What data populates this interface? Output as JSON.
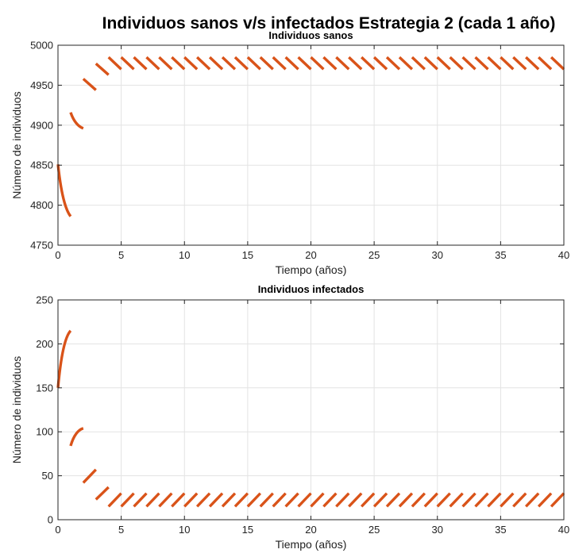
{
  "figure_title": "Individuos sanos v/s infectados Estrategia 2 (cada 1 año)",
  "colors": {
    "series": "#d95319",
    "grid": "#e3e3e3",
    "axis": "#262626"
  },
  "chart_data": [
    {
      "type": "line",
      "title": "Individuos sanos",
      "xlabel": "Tiempo (años)",
      "ylabel": "Número de individuos",
      "xlim": [
        0,
        40
      ],
      "ylim": [
        4750,
        5000
      ],
      "xticks": [
        0,
        5,
        10,
        15,
        20,
        25,
        30,
        35,
        40
      ],
      "yticks": [
        4750,
        4800,
        4850,
        4900,
        4950,
        5000
      ],
      "grid": true,
      "series": [
        {
          "segments": [
            {
              "x": [
                0,
                1
              ],
              "y": [
                4851,
                4786
              ],
              "curve": "convex"
            },
            {
              "x": [
                1,
                2
              ],
              "y": [
                4916,
                4896
              ],
              "curve": "convex"
            },
            {
              "x": [
                2,
                3
              ],
              "y": [
                4958,
                4944
              ],
              "curve": "linear"
            },
            {
              "x": [
                3,
                4
              ],
              "y": [
                4977,
                4963
              ],
              "curve": "linear"
            },
            {
              "x": [
                4,
                40
              ],
              "y": [
                4985,
                4970
              ],
              "periodic": true,
              "period": 1
            }
          ]
        }
      ]
    },
    {
      "type": "line",
      "title": "Individuos infectados",
      "xlabel": "Tiempo (años)",
      "ylabel": "Número de individuos",
      "xlim": [
        0,
        40
      ],
      "ylim": [
        0,
        250
      ],
      "xticks": [
        0,
        5,
        10,
        15,
        20,
        25,
        30,
        35,
        40
      ],
      "yticks": [
        0,
        50,
        100,
        150,
        200,
        250
      ],
      "grid": true,
      "series": [
        {
          "segments": [
            {
              "x": [
                0,
                1
              ],
              "y": [
                150,
                215
              ],
              "curve": "concave"
            },
            {
              "x": [
                1,
                2
              ],
              "y": [
                84,
                104
              ],
              "curve": "concave"
            },
            {
              "x": [
                2,
                3
              ],
              "y": [
                42,
                57
              ],
              "curve": "linear"
            },
            {
              "x": [
                3,
                4
              ],
              "y": [
                23,
                37
              ],
              "curve": "linear"
            },
            {
              "x": [
                4,
                40
              ],
              "y": [
                15,
                30
              ],
              "periodic": true,
              "period": 1
            }
          ]
        }
      ]
    }
  ]
}
